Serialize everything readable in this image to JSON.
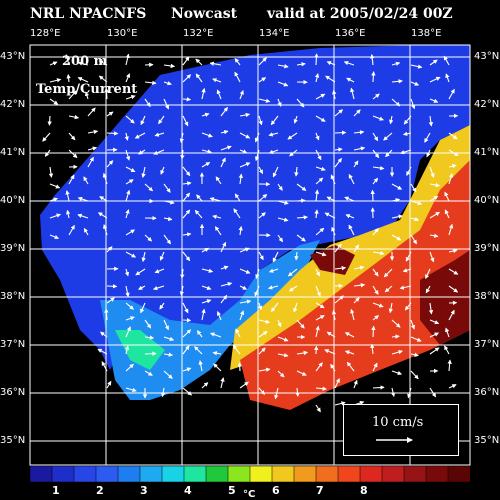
{
  "header": {
    "source": "NRL NPACNFS",
    "product": "Nowcast",
    "valid": "valid at 2005/02/24 00Z"
  },
  "overlay": {
    "depth": "200 m",
    "field": "Temp/Current"
  },
  "lon_ticks": [
    "128°E",
    "130°E",
    "132°E",
    "134°E",
    "136°E",
    "138°E"
  ],
  "lat_ticks": [
    "43°N",
    "42°N",
    "41°N",
    "40°N",
    "39°N",
    "38°N",
    "37°N",
    "36°N",
    "35°N"
  ],
  "scale": {
    "label": "10 cm/s"
  },
  "colorbar": {
    "ticks": [
      "1",
      "2",
      "3",
      "4",
      "5",
      "6",
      "7",
      "8"
    ],
    "units": "°C",
    "colors": [
      "#1a1aa0",
      "#1e2ec8",
      "#2846e6",
      "#2d5af0",
      "#1e7ef0",
      "#1eaaf0",
      "#18d2e6",
      "#1ee6a0",
      "#20c83c",
      "#8ce61e",
      "#f0f01e",
      "#f0c81e",
      "#f09b1e",
      "#f06e1e",
      "#f0461e",
      "#dc281e",
      "#be1e1e",
      "#961414",
      "#780a0a",
      "#5a0505"
    ]
  },
  "map_colors": {
    "cold": "#1e3ce6",
    "cool": "#1e8cf0",
    "mild": "#1ee6a0",
    "warm": "#f0c81e",
    "hot": "#e63c1e",
    "core": "#780a0a",
    "land": "#000000"
  }
}
